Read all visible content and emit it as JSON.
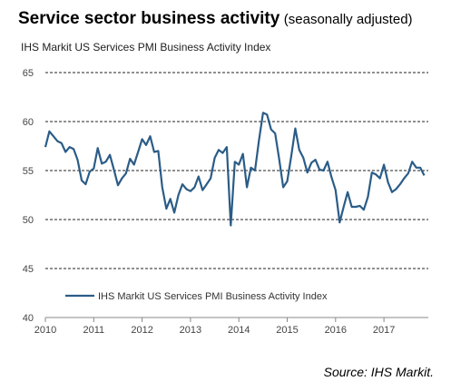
{
  "header": {
    "title": "Service sector business activity",
    "subtitle": "(seasonally adjusted)",
    "index_label": "IHS Markit US Services PMI Business Activity Index"
  },
  "source": "Source: IHS Markit.",
  "colors": {
    "line": "#2b5c87",
    "grid": "#222222",
    "axis": "#888888"
  },
  "chart_data": {
    "type": "line",
    "title": "Service sector business activity",
    "subtitle": "(seasonally adjusted)",
    "ylabel": "IHS Markit US Services PMI Business Activity Index",
    "ylim": [
      40,
      65
    ],
    "yticks": [
      40,
      45,
      50,
      55,
      60,
      65
    ],
    "xlim": [
      2010.0,
      2017.917
    ],
    "xticks": [
      "2010",
      "2011",
      "2012",
      "2013",
      "2014",
      "2015",
      "2016",
      "2017"
    ],
    "grid": "horizontal dashed",
    "legend_position": "bottom-left inside",
    "series": [
      {
        "name": "IHS Markit US Services PMI Business Activity Index",
        "x_start": "2010-01",
        "frequency": "monthly",
        "values": [
          57.4,
          59.0,
          58.5,
          58.0,
          57.8,
          56.9,
          57.4,
          57.2,
          56.1,
          54.0,
          53.6,
          54.9,
          55.2,
          57.3,
          55.7,
          55.9,
          56.6,
          55.1,
          53.5,
          54.2,
          54.7,
          56.2,
          55.6,
          56.9,
          58.2,
          57.6,
          58.5,
          56.9,
          57.0,
          53.3,
          51.1,
          52.1,
          50.7,
          52.5,
          53.6,
          53.1,
          52.9,
          53.3,
          54.4,
          53.0,
          53.6,
          54.2,
          56.3,
          57.1,
          56.8,
          57.4,
          49.4,
          55.9,
          55.6,
          56.7,
          53.3,
          55.3,
          55.0,
          58.1,
          60.9,
          60.7,
          59.2,
          58.8,
          56.2,
          53.3,
          53.9,
          56.5,
          59.3,
          57.1,
          56.3,
          54.8,
          55.8,
          56.1,
          55.1,
          55.0,
          55.9,
          54.3,
          53.0,
          49.7,
          51.3,
          52.8,
          51.3,
          51.3,
          51.4,
          51.0,
          52.3,
          54.8,
          54.6,
          54.2,
          55.6,
          53.8,
          52.8,
          53.1,
          53.6,
          54.2,
          54.7,
          55.9,
          55.3,
          55.3,
          54.5
        ]
      }
    ]
  }
}
